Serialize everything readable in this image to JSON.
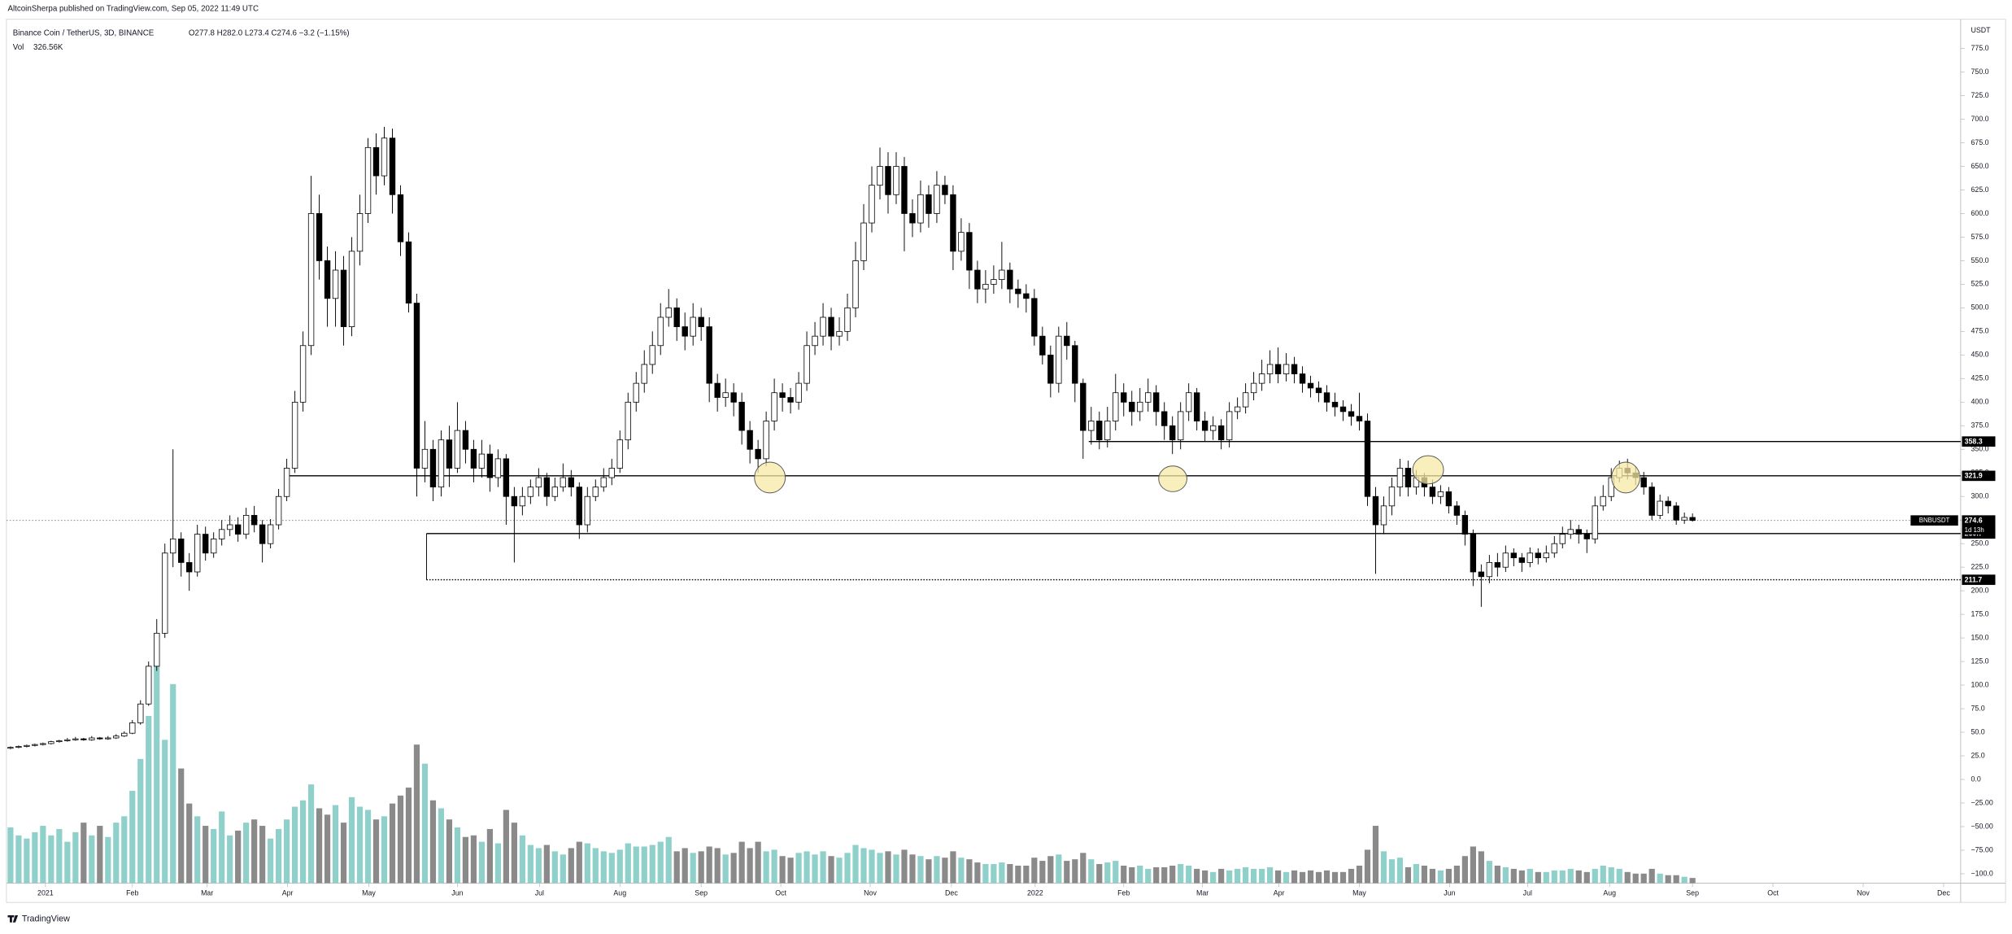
{
  "chart_data": {
    "type": "candlestick",
    "publisher_line": "AltcoinSherpa published on TradingView.com, Sep 05, 2022 11:49 UTC",
    "title": "Binance Coin / TetherUS, 3D, BINANCE",
    "ohlc_legend": "O277.8 H282.0 L273.4 C274.6 −3.2 (−1.15%)",
    "volume_legend": {
      "name": "Vol",
      "value_label": "326.56K"
    },
    "y_unit": "USDT",
    "symbol": "BNBUSDT",
    "countdown": "1d 13h",
    "footer": "TradingView",
    "up_color": "#ffffff",
    "down_color": "#000000",
    "volume_up_color": "#8fd0ca",
    "volume_down_color": "#8a8a8a",
    "grid": false,
    "xlim": [
      -0.5,
      240
    ],
    "xticks": [
      {
        "value": 4.3,
        "label": "2021"
      },
      {
        "value": 15.0,
        "label": "Feb"
      },
      {
        "value": 24.2,
        "label": "Mar"
      },
      {
        "value": 34.1,
        "label": "Apr"
      },
      {
        "value": 44.1,
        "label": "May"
      },
      {
        "value": 55.0,
        "label": "Jun"
      },
      {
        "value": 65.1,
        "label": "Jul"
      },
      {
        "value": 75.0,
        "label": "Aug"
      },
      {
        "value": 85.0,
        "label": "Sep"
      },
      {
        "value": 94.8,
        "label": "Oct"
      },
      {
        "value": 105.8,
        "label": "Nov"
      },
      {
        "value": 115.8,
        "label": "Dec"
      },
      {
        "value": 126.1,
        "label": "2022"
      },
      {
        "value": 137.0,
        "label": "Feb"
      },
      {
        "value": 146.7,
        "label": "Mar"
      },
      {
        "value": 156.1,
        "label": "Apr"
      },
      {
        "value": 166.0,
        "label": "May"
      },
      {
        "value": 177.1,
        "label": "Jun"
      },
      {
        "value": 186.7,
        "label": "Jul"
      },
      {
        "value": 196.8,
        "label": "Aug"
      },
      {
        "value": 207.0,
        "label": "Sep"
      },
      {
        "value": 216.9,
        "label": "Oct"
      },
      {
        "value": 228.0,
        "label": "Nov"
      },
      {
        "value": 237.9,
        "label": "Dec"
      }
    ],
    "ylim": [
      -110,
      806
    ],
    "yticks": [
      {
        "value": 775,
        "label": "775.0"
      },
      {
        "value": 750,
        "label": "750.0"
      },
      {
        "value": 725,
        "label": "725.0"
      },
      {
        "value": 700,
        "label": "700.0"
      },
      {
        "value": 675,
        "label": "675.0"
      },
      {
        "value": 650,
        "label": "650.0"
      },
      {
        "value": 625,
        "label": "625.0"
      },
      {
        "value": 600,
        "label": "600.0"
      },
      {
        "value": 575,
        "label": "575.0"
      },
      {
        "value": 550,
        "label": "550.0"
      },
      {
        "value": 525,
        "label": "525.0"
      },
      {
        "value": 500,
        "label": "500.0"
      },
      {
        "value": 475,
        "label": "475.0"
      },
      {
        "value": 450,
        "label": "450.0"
      },
      {
        "value": 425,
        "label": "425.0"
      },
      {
        "value": 400,
        "label": "400.0"
      },
      {
        "value": 375,
        "label": "375.0"
      },
      {
        "value": 350,
        "label": "350.0"
      },
      {
        "value": 325,
        "label": "325.0"
      },
      {
        "value": 300,
        "label": "300.0"
      },
      {
        "value": 275,
        "label": "275.0"
      },
      {
        "value": 250,
        "label": "250.0"
      },
      {
        "value": 225,
        "label": "225.0"
      },
      {
        "value": 200,
        "label": "200.0"
      },
      {
        "value": 175,
        "label": "175.0"
      },
      {
        "value": 150,
        "label": "150.0"
      },
      {
        "value": 125,
        "label": "125.0"
      },
      {
        "value": 100,
        "label": "100.0"
      },
      {
        "value": 75,
        "label": "75.0"
      },
      {
        "value": 50,
        "label": "50.0"
      },
      {
        "value": 25,
        "label": "25.0"
      },
      {
        "value": 0,
        "label": "0.0"
      },
      {
        "value": -25,
        "label": "−25.00"
      },
      {
        "value": -50,
        "label": "−50.00"
      },
      {
        "value": -75,
        "label": "−75.00"
      },
      {
        "value": -100,
        "label": "−100.0"
      }
    ],
    "levels": [
      {
        "value": 358.3,
        "from": 132.7,
        "style": "solid"
      },
      {
        "value": 321.9,
        "from": 34.3,
        "style": "solid"
      },
      {
        "value": 260.7,
        "from": 51.2,
        "style": "solid"
      },
      {
        "value": 211.7,
        "from": 51.2,
        "style": "dotted"
      }
    ],
    "open": [
      33,
      34,
      35,
      36,
      37,
      38,
      40,
      41,
      42,
      43,
      42,
      44,
      43,
      44,
      46,
      49,
      60,
      80,
      120,
      155,
      240,
      255,
      230,
      220,
      260,
      240,
      255,
      265,
      270,
      260,
      280,
      270,
      250,
      270,
      300,
      330,
      400,
      460,
      600,
      550,
      510,
      540,
      480,
      560,
      600,
      670,
      640,
      680,
      620,
      570,
      505,
      330,
      350,
      310,
      360,
      330,
      370,
      350,
      330,
      345,
      320,
      340,
      300,
      290,
      300,
      310,
      320,
      300,
      310,
      320,
      310,
      270,
      300,
      310,
      320,
      330,
      360,
      400,
      420,
      440,
      460,
      490,
      500,
      480,
      470,
      490,
      480,
      420,
      405,
      410,
      400,
      370,
      350,
      340,
      380,
      410,
      405,
      400,
      420,
      460,
      470,
      490,
      470,
      475,
      500,
      550,
      590,
      630,
      650,
      620,
      650,
      600,
      590,
      620,
      600,
      630,
      620,
      560,
      580,
      540,
      520,
      525,
      530,
      540,
      520,
      515,
      510,
      470,
      450,
      420,
      470,
      460,
      420,
      370,
      380,
      360,
      380,
      410,
      400,
      390,
      400,
      410,
      390,
      375,
      360,
      390,
      410,
      380,
      370,
      375,
      360,
      390,
      395,
      410,
      420,
      430,
      440,
      430,
      440,
      430,
      420,
      415,
      410,
      400,
      395,
      390,
      385,
      380,
      300,
      270,
      290,
      310,
      330,
      310,
      320,
      310,
      300,
      305,
      290,
      280,
      260,
      220,
      215,
      230,
      225,
      240,
      235,
      230,
      240,
      235,
      240,
      250,
      260,
      265,
      260,
      255,
      290,
      300,
      320,
      330,
      325,
      320,
      310,
      280,
      295,
      290,
      275,
      277.8
    ],
    "high": [
      35,
      36,
      37,
      38,
      39,
      41,
      42,
      44,
      45,
      44,
      46,
      45,
      46,
      48,
      51,
      63,
      84,
      125,
      170,
      250,
      350,
      262,
      240,
      270,
      268,
      262,
      275,
      280,
      278,
      288,
      290,
      275,
      276,
      308,
      340,
      412,
      475,
      640,
      620,
      565,
      560,
      555,
      575,
      620,
      680,
      685,
      692,
      690,
      630,
      580,
      515,
      380,
      360,
      370,
      375,
      400,
      380,
      360,
      360,
      355,
      350,
      345,
      310,
      310,
      318,
      330,
      325,
      320,
      335,
      328,
      315,
      310,
      318,
      330,
      340,
      370,
      410,
      432,
      455,
      475,
      505,
      520,
      510,
      495,
      505,
      500,
      490,
      430,
      425,
      420,
      410,
      380,
      360,
      390,
      425,
      420,
      415,
      432,
      475,
      485,
      505,
      500,
      490,
      515,
      570,
      610,
      650,
      670,
      665,
      665,
      660,
      615,
      635,
      630,
      645,
      640,
      630,
      595,
      590,
      550,
      540,
      545,
      570,
      548,
      530,
      525,
      520,
      480,
      460,
      480,
      485,
      465,
      425,
      395,
      390,
      395,
      430,
      420,
      412,
      415,
      425,
      418,
      400,
      385,
      400,
      420,
      415,
      390,
      385,
      382,
      400,
      405,
      420,
      432,
      445,
      455,
      458,
      452,
      448,
      438,
      428,
      422,
      418,
      410,
      402,
      398,
      410,
      388,
      310,
      300,
      320,
      340,
      338,
      328,
      325,
      318,
      312,
      310,
      295,
      285,
      265,
      228,
      238,
      240,
      248,
      245,
      240,
      246,
      245,
      248,
      258,
      268,
      275,
      270,
      265,
      300,
      312,
      330,
      338,
      340,
      332,
      326,
      315,
      302,
      300,
      294,
      283,
      282
    ],
    "low": [
      32,
      33,
      34,
      35,
      36,
      37,
      39,
      40,
      41,
      41,
      41,
      42,
      42,
      43,
      45,
      48,
      58,
      78,
      115,
      150,
      225,
      215,
      200,
      215,
      232,
      235,
      248,
      258,
      252,
      255,
      262,
      230,
      245,
      265,
      295,
      325,
      390,
      450,
      530,
      480,
      480,
      460,
      470,
      545,
      590,
      620,
      630,
      600,
      555,
      495,
      300,
      315,
      295,
      300,
      310,
      325,
      335,
      315,
      320,
      305,
      310,
      270,
      230,
      280,
      292,
      300,
      290,
      295,
      305,
      300,
      255,
      262,
      295,
      305,
      312,
      325,
      350,
      390,
      410,
      430,
      450,
      480,
      465,
      455,
      460,
      465,
      400,
      390,
      395,
      385,
      355,
      335,
      325,
      332,
      370,
      390,
      388,
      392,
      412,
      450,
      460,
      455,
      460,
      465,
      490,
      540,
      580,
      615,
      600,
      610,
      560,
      575,
      580,
      585,
      590,
      610,
      540,
      550,
      520,
      505,
      505,
      515,
      520,
      505,
      500,
      495,
      460,
      440,
      405,
      410,
      445,
      400,
      340,
      355,
      350,
      352,
      370,
      385,
      375,
      380,
      390,
      375,
      360,
      345,
      350,
      380,
      370,
      358,
      360,
      350,
      352,
      382,
      388,
      402,
      412,
      420,
      420,
      422,
      420,
      410,
      405,
      400,
      390,
      385,
      380,
      375,
      370,
      290,
      218,
      260,
      280,
      300,
      300,
      302,
      300,
      292,
      292,
      282,
      270,
      248,
      205,
      183,
      208,
      215,
      220,
      226,
      220,
      225,
      228,
      230,
      235,
      245,
      255,
      250,
      240,
      250,
      285,
      295,
      315,
      318,
      312,
      302,
      275,
      276,
      282,
      270,
      271,
      273.4
    ],
    "close": [
      34,
      35,
      36,
      37,
      38,
      40,
      41,
      42,
      43,
      42,
      44,
      43,
      44,
      46,
      49,
      60,
      80,
      120,
      155,
      240,
      255,
      230,
      220,
      260,
      240,
      255,
      265,
      270,
      260,
      280,
      270,
      250,
      270,
      300,
      330,
      400,
      460,
      600,
      550,
      510,
      540,
      480,
      560,
      600,
      670,
      640,
      680,
      620,
      570,
      505,
      330,
      350,
      310,
      360,
      330,
      370,
      350,
      330,
      345,
      320,
      340,
      300,
      290,
      300,
      310,
      320,
      300,
      310,
      320,
      310,
      270,
      300,
      310,
      320,
      330,
      360,
      400,
      420,
      440,
      460,
      490,
      500,
      480,
      470,
      490,
      480,
      420,
      405,
      410,
      400,
      370,
      350,
      340,
      380,
      410,
      405,
      400,
      420,
      460,
      470,
      490,
      470,
      475,
      500,
      550,
      590,
      630,
      650,
      620,
      650,
      600,
      590,
      620,
      600,
      630,
      620,
      560,
      580,
      540,
      520,
      525,
      530,
      540,
      520,
      515,
      510,
      470,
      450,
      420,
      470,
      460,
      420,
      370,
      380,
      360,
      380,
      410,
      400,
      390,
      400,
      410,
      390,
      375,
      360,
      390,
      410,
      380,
      370,
      375,
      360,
      390,
      395,
      410,
      420,
      430,
      440,
      430,
      440,
      430,
      420,
      415,
      410,
      400,
      395,
      390,
      385,
      380,
      300,
      270,
      290,
      310,
      330,
      310,
      320,
      310,
      300,
      305,
      290,
      280,
      260,
      220,
      215,
      230,
      225,
      240,
      235,
      230,
      240,
      235,
      240,
      250,
      260,
      265,
      260,
      255,
      290,
      300,
      320,
      330,
      325,
      320,
      310,
      280,
      295,
      290,
      275,
      277.8,
      274.6
    ],
    "volume": [
      3500,
      3000,
      2800,
      3200,
      3600,
      3000,
      3400,
      2600,
      3200,
      3800,
      3000,
      3600,
      2900,
      3800,
      4200,
      5800,
      7800,
      10500,
      13700,
      9000,
      12500,
      7200,
      5000,
      4200,
      3600,
      3400,
      4500,
      3000,
      3300,
      3800,
      4000,
      3600,
      2800,
      3400,
      4000,
      4800,
      5200,
      6200,
      4700,
      4300,
      4900,
      3800,
      5400,
      4800,
      4600,
      4000,
      4200,
      5000,
      5500,
      6000,
      8700,
      7500,
      5200,
      4700,
      4000,
      3500,
      2900,
      3000,
      2600,
      3400,
      2500,
      4600,
      3800,
      3000,
      2400,
      2200,
      2400,
      2000,
      1800,
      2200,
      2600,
      2500,
      2200,
      2000,
      1900,
      2100,
      2500,
      2300,
      2300,
      2400,
      2600,
      2900,
      2000,
      2200,
      1900,
      2000,
      2300,
      2200,
      1800,
      1900,
      2600,
      2200,
      2600,
      2000,
      2100,
      1700,
      1600,
      1900,
      2000,
      1800,
      2000,
      1700,
      1600,
      1900,
      2400,
      2200,
      2100,
      1900,
      2000,
      1800,
      2100,
      1800,
      1700,
      1500,
      1700,
      1600,
      2000,
      1600,
      1500,
      1300,
      1200,
      1200,
      1300,
      1200,
      1100,
      1100,
      1600,
      1400,
      1700,
      1800,
      1400,
      1500,
      1900,
      1500,
      1200,
      1300,
      1400,
      1100,
      1000,
      1100,
      900,
      1000,
      1000,
      1100,
      1200,
      1100,
      900,
      800,
      700,
      900,
      800,
      900,
      1000,
      900,
      900,
      1000,
      800,
      700,
      800,
      700,
      800,
      700,
      800,
      700,
      700,
      900,
      1100,
      2100,
      3600,
      2000,
      1500,
      1600,
      1000,
      1200,
      1100,
      900,
      800,
      900,
      1100,
      1700,
      2300,
      2000,
      1400,
      1100,
      1000,
      900,
      800,
      900,
      700,
      700,
      800,
      800,
      900,
      800,
      700,
      900,
      1100,
      1000,
      900,
      700,
      600,
      600,
      900,
      600,
      500,
      500,
      400,
      326.56
    ]
  }
}
